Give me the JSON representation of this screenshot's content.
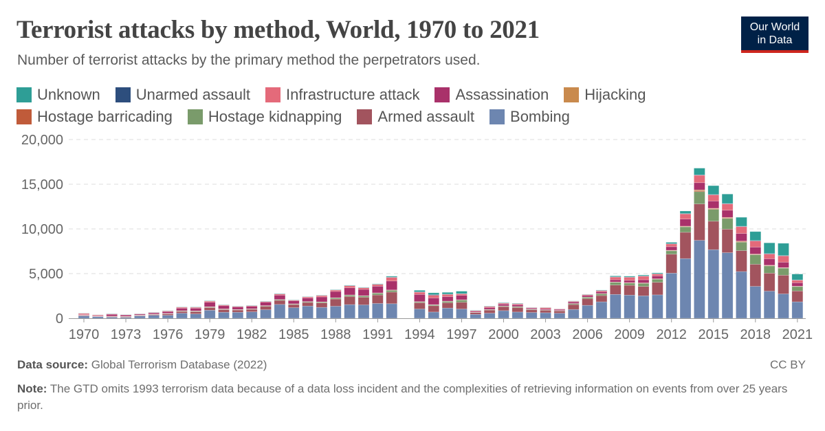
{
  "header": {
    "title": "Terrorist attacks by method, World, 1970 to 2021",
    "subtitle": "Number of terrorist attacks by the primary method the perpetrators used.",
    "logo_line1": "Our World",
    "logo_line2": "in Data"
  },
  "footer": {
    "source_label": "Data source:",
    "source": "Global Terrorism Database (2022)",
    "license": "CC BY",
    "note_label": "Note:",
    "note": "The GTD omits 1993 terrorism data because of a data loss incident and the complexities of retrieving information on events from over 25 years prior."
  },
  "legend": [
    "Unknown",
    "Unarmed assault",
    "Infrastructure attack",
    "Assassination",
    "Hijacking",
    "Hostage barricading",
    "Hostage kidnapping",
    "Armed assault",
    "Bombing"
  ],
  "chart_data": {
    "type": "bar",
    "stacked": true,
    "title": "Terrorist attacks by method, World, 1970 to 2021",
    "ylim": [
      0,
      20000
    ],
    "yticks": [
      "0",
      "5,000",
      "10,000",
      "15,000",
      "20,000"
    ],
    "yticks_values": [
      0,
      5000,
      10000,
      15000,
      20000
    ],
    "xticks": [
      "1970",
      "1973",
      "1976",
      "1979",
      "1982",
      "1985",
      "1988",
      "1991",
      "1994",
      "1997",
      "2000",
      "2003",
      "2006",
      "2009",
      "2012",
      "2015",
      "2018",
      "2021"
    ],
    "grid": "horizontal dashed",
    "legend_placement": "top",
    "categories": [
      1970,
      1971,
      1972,
      1973,
      1974,
      1975,
      1976,
      1977,
      1978,
      1979,
      1980,
      1981,
      1982,
      1983,
      1984,
      1985,
      1986,
      1987,
      1988,
      1989,
      1990,
      1991,
      1992,
      1993,
      1994,
      1995,
      1996,
      1997,
      1998,
      1999,
      2000,
      2001,
      2002,
      2003,
      2004,
      2005,
      2006,
      2007,
      2008,
      2009,
      2010,
      2011,
      2012,
      2013,
      2014,
      2015,
      2016,
      2017,
      2018,
      2019,
      2020,
      2021
    ],
    "series": [
      {
        "name": "Bombing",
        "color": "#6d86b0",
        "values": [
          260,
          180,
          130,
          100,
          260,
          340,
          340,
          570,
          490,
          900,
          675,
          675,
          725,
          960,
          1550,
          1190,
          1370,
          1220,
          1350,
          1530,
          1500,
          1660,
          1630,
          0,
          1040,
          700,
          1140,
          1040,
          440,
          570,
          855,
          700,
          650,
          620,
          570,
          985,
          1450,
          1840,
          2670,
          2590,
          2510,
          2620,
          5050,
          6680,
          8720,
          7680,
          7340,
          5230,
          3570,
          3040,
          2730,
          1840
        ]
      },
      {
        "name": "Armed assault",
        "color": "#a2545e",
        "values": [
          60,
          30,
          60,
          60,
          50,
          80,
          150,
          200,
          250,
          300,
          300,
          250,
          280,
          380,
          450,
          350,
          400,
          500,
          800,
          900,
          850,
          950,
          1300,
          0,
          700,
          700,
          600,
          750,
          200,
          350,
          450,
          500,
          300,
          280,
          250,
          550,
          750,
          700,
          1050,
          1100,
          1050,
          1400,
          2120,
          2940,
          4070,
          3180,
          2630,
          2340,
          2470,
          2010,
          2090,
          1220
        ]
      },
      {
        "name": "Hostage kidnapping",
        "color": "#7a9b6b",
        "values": [
          20,
          5,
          20,
          30,
          30,
          30,
          40,
          50,
          60,
          60,
          50,
          40,
          40,
          60,
          80,
          60,
          80,
          100,
          120,
          150,
          150,
          200,
          200,
          0,
          100,
          100,
          150,
          250,
          30,
          60,
          70,
          100,
          60,
          40,
          40,
          100,
          150,
          200,
          300,
          250,
          350,
          350,
          380,
          610,
          1380,
          1330,
          1200,
          950,
          1070,
          810,
          790,
          490
        ]
      },
      {
        "name": "Hostage barricading",
        "color": "#c05b3a",
        "values": [
          5,
          5,
          10,
          10,
          10,
          10,
          10,
          15,
          15,
          20,
          15,
          10,
          10,
          10,
          10,
          10,
          10,
          10,
          20,
          20,
          20,
          20,
          30,
          0,
          20,
          20,
          20,
          20,
          10,
          10,
          10,
          10,
          10,
          10,
          10,
          10,
          20,
          20,
          20,
          30,
          30,
          30,
          30,
          40,
          100,
          60,
          60,
          60,
          40,
          40,
          30,
          20
        ]
      },
      {
        "name": "Hijacking",
        "color": "#c98a4d",
        "values": [
          10,
          5,
          20,
          15,
          10,
          10,
          10,
          10,
          10,
          10,
          10,
          10,
          5,
          5,
          10,
          10,
          10,
          10,
          10,
          10,
          10,
          10,
          10,
          0,
          10,
          10,
          10,
          10,
          5,
          5,
          5,
          5,
          5,
          5,
          5,
          10,
          10,
          10,
          20,
          20,
          20,
          20,
          30,
          40,
          100,
          60,
          60,
          60,
          40,
          40,
          30,
          20
        ]
      },
      {
        "name": "Assassination",
        "color": "#a9316a",
        "values": [
          60,
          50,
          200,
          150,
          110,
          140,
          200,
          280,
          300,
          500,
          350,
          280,
          280,
          380,
          480,
          330,
          400,
          550,
          700,
          800,
          700,
          750,
          1000,
          0,
          800,
          750,
          500,
          500,
          100,
          200,
          200,
          200,
          120,
          120,
          120,
          180,
          180,
          200,
          250,
          250,
          350,
          320,
          400,
          790,
          800,
          810,
          800,
          850,
          770,
          720,
          600,
          390
        ]
      },
      {
        "name": "Infrastructure attack",
        "color": "#e46a7a",
        "values": [
          130,
          100,
          50,
          30,
          30,
          40,
          70,
          110,
          100,
          130,
          90,
          70,
          70,
          80,
          130,
          80,
          120,
          150,
          150,
          220,
          180,
          200,
          400,
          0,
          250,
          300,
          250,
          160,
          80,
          120,
          100,
          100,
          50,
          120,
          50,
          70,
          90,
          120,
          300,
          350,
          400,
          220,
          310,
          580,
          830,
          690,
          710,
          760,
          690,
          530,
          710,
          280
        ]
      },
      {
        "name": "Unarmed assault",
        "color": "#2d4e7d",
        "values": [
          5,
          5,
          10,
          5,
          5,
          5,
          5,
          5,
          10,
          10,
          10,
          10,
          10,
          15,
          20,
          10,
          10,
          15,
          20,
          20,
          20,
          20,
          40,
          0,
          50,
          70,
          30,
          30,
          10,
          15,
          20,
          15,
          5,
          5,
          5,
          10,
          10,
          20,
          30,
          20,
          30,
          20,
          30,
          40,
          50,
          40,
          40,
          50,
          50,
          50,
          40,
          30
        ]
      },
      {
        "name": "Unknown",
        "color": "#2e9e96",
        "values": [
          20,
          10,
          20,
          15,
          15,
          20,
          30,
          30,
          35,
          40,
          30,
          25,
          30,
          30,
          40,
          30,
          30,
          35,
          40,
          50,
          40,
          50,
          100,
          0,
          160,
          200,
          200,
          270,
          30,
          40,
          50,
          50,
          20,
          20,
          10,
          25,
          30,
          50,
          100,
          100,
          100,
          100,
          150,
          280,
          750,
          990,
          1060,
          1000,
          1000,
          1200,
          1370,
          660
        ]
      }
    ]
  }
}
